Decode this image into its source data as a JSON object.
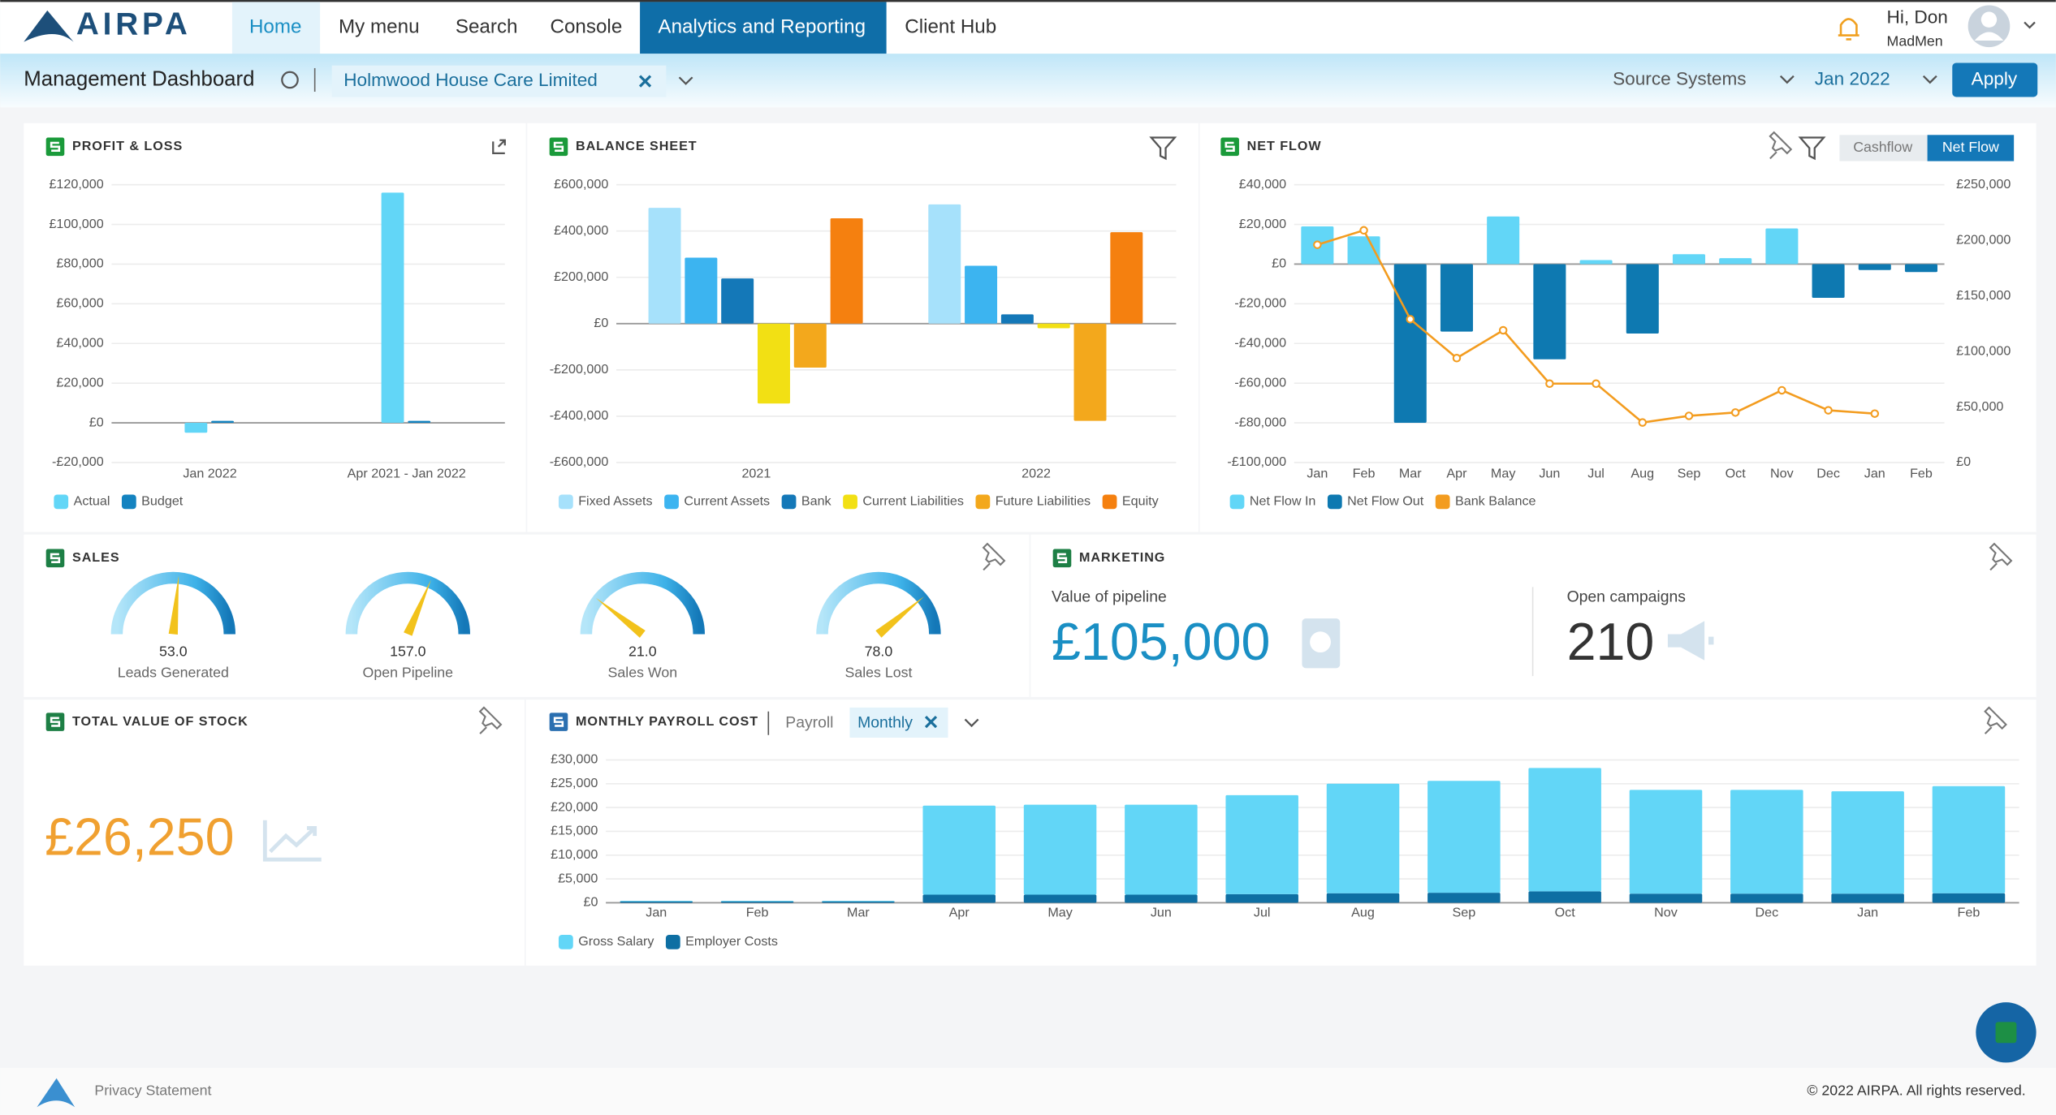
{
  "nav": {
    "logo": "AIRPA",
    "items": [
      "Home",
      "My menu",
      "Search",
      "Console",
      "Analytics and Reporting",
      "Client Hub"
    ],
    "greeting": "Hi, Don",
    "company": "MadMen"
  },
  "toolbar": {
    "title": "Management Dashboard",
    "client": "Holmwood House Care Limited",
    "source": "Source Systems",
    "period": "Jan 2022",
    "apply": "Apply"
  },
  "chart_data": [
    {
      "type": "bar",
      "title": "PROFIT & LOSS",
      "bar_mode": "group",
      "grid": true,
      "categories": [
        "Jan 2022",
        "Apr 2021 - Jan 2022"
      ],
      "series": [
        {
          "name": "Actual",
          "color": "#62d6f7",
          "values": [
            -5000,
            116000
          ]
        },
        {
          "name": "Budget",
          "color": "#1483c0",
          "values": [
            1000,
            1000
          ]
        }
      ],
      "ylim": [
        -20000,
        120000
      ],
      "yticks": [
        {
          "value": 120000,
          "label": "£120,000"
        },
        {
          "value": 100000,
          "label": "£100,000"
        },
        {
          "value": 80000,
          "label": "£80,000"
        },
        {
          "value": 60000,
          "label": "£60,000"
        },
        {
          "value": 40000,
          "label": "£40,000"
        },
        {
          "value": 20000,
          "label": "£20,000"
        },
        {
          "value": 0,
          "label": "£0"
        },
        {
          "value": -20000,
          "label": "-£20,000"
        }
      ]
    },
    {
      "type": "bar",
      "title": "BALANCE SHEET",
      "bar_mode": "group",
      "grid": true,
      "categories": [
        "2021",
        "2022"
      ],
      "series": [
        {
          "name": "Fixed Assets",
          "color": "#a6e1fb",
          "values": [
            500000,
            515000
          ]
        },
        {
          "name": "Current Assets",
          "color": "#3cb4f0",
          "values": [
            285000,
            250000
          ]
        },
        {
          "name": "Bank",
          "color": "#1478b8",
          "values": [
            195000,
            40000
          ]
        },
        {
          "name": "Current Liabilities",
          "color": "#f2e014",
          "values": [
            -345000,
            -20000
          ]
        },
        {
          "name": "Future Liabilities",
          "color": "#f3a81c",
          "values": [
            -190000,
            -420000
          ]
        },
        {
          "name": "Equity",
          "color": "#f5800f",
          "values": [
            455000,
            395000
          ]
        }
      ],
      "ylim": [
        -600000,
        600000
      ],
      "yticks": [
        {
          "value": 600000,
          "label": "£600,000"
        },
        {
          "value": 400000,
          "label": "£400,000"
        },
        {
          "value": 200000,
          "label": "£200,000"
        },
        {
          "value": 0,
          "label": "£0"
        },
        {
          "value": -200000,
          "label": "-£200,000"
        },
        {
          "value": -400000,
          "label": "-£400,000"
        },
        {
          "value": -600000,
          "label": "-£600,000"
        }
      ]
    },
    {
      "type": "bar",
      "title": "NET FLOW",
      "bar_mode": "overlay",
      "grid": true,
      "toggle": [
        "Cashflow",
        "Net Flow"
      ],
      "categories": [
        "Jan",
        "Feb",
        "Mar",
        "Apr",
        "May",
        "Jun",
        "Jul",
        "Aug",
        "Sep",
        "Oct",
        "Nov",
        "Dec",
        "Jan",
        "Feb"
      ],
      "series": [
        {
          "name": "Net Flow In",
          "color": "#62d6f7",
          "values": [
            19000,
            14000,
            0,
            0,
            24000,
            0,
            2000,
            0,
            5000,
            3000,
            18000,
            0,
            0,
            0
          ]
        },
        {
          "name": "Net Flow Out",
          "color": "#0e79b1",
          "values": [
            0,
            0,
            -80000,
            -34000,
            0,
            -48000,
            0,
            -35000,
            0,
            0,
            0,
            -17000,
            -3000,
            -4000
          ]
        },
        {
          "name": "Bank Balance",
          "color": "#f39c1f",
          "type": "line",
          "axis": "y2",
          "values": [
            196000,
            209000,
            129000,
            94000,
            119000,
            71000,
            71000,
            36000,
            42000,
            45000,
            65000,
            47000,
            44000,
            null
          ]
        }
      ],
      "ylim": [
        -100000,
        40000
      ],
      "yticks": [
        {
          "value": 40000,
          "label": "£40,000"
        },
        {
          "value": 20000,
          "label": "£20,000"
        },
        {
          "value": 0,
          "label": "£0"
        },
        {
          "value": -20000,
          "label": "-£20,000"
        },
        {
          "value": -40000,
          "label": "-£40,000"
        },
        {
          "value": -60000,
          "label": "-£60,000"
        },
        {
          "value": -80000,
          "label": "-£80,000"
        },
        {
          "value": -100000,
          "label": "-£100,000"
        }
      ],
      "y2lim": [
        0,
        250000
      ],
      "y2ticks": [
        {
          "value": 250000,
          "label": "£250,000"
        },
        {
          "value": 200000,
          "label": "£200,000"
        },
        {
          "value": 150000,
          "label": "£150,000"
        },
        {
          "value": 100000,
          "label": "£100,000"
        },
        {
          "value": 50000,
          "label": "£50,000"
        },
        {
          "value": 0,
          "label": "£0"
        }
      ]
    },
    {
      "type": "bar",
      "title": "MONTHLY PAYROLL COST",
      "bar_mode": "stack",
      "grid": true,
      "filter": "Payroll",
      "chip": "Monthly",
      "categories": [
        "Jan",
        "Feb",
        "Mar",
        "Apr",
        "May",
        "Jun",
        "Jul",
        "Aug",
        "Sep",
        "Oct",
        "Nov",
        "Dec",
        "Jan",
        "Feb"
      ],
      "series": [
        {
          "name": "Gross Salary",
          "color": "#62d6f7",
          "values": [
            100,
            100,
            100,
            18700,
            18900,
            18900,
            20800,
            23000,
            23500,
            25900,
            21800,
            21800,
            21500,
            22500
          ]
        },
        {
          "name": "Employer Costs",
          "color": "#0e6fa3",
          "values": [
            300,
            300,
            300,
            1700,
            1700,
            1700,
            1800,
            2000,
            2100,
            2400,
            1900,
            1900,
            1900,
            2000
          ]
        }
      ],
      "ylim": [
        0,
        30000
      ],
      "yticks": [
        {
          "value": 30000,
          "label": "£30,000"
        },
        {
          "value": 25000,
          "label": "£25,000"
        },
        {
          "value": 20000,
          "label": "£20,000"
        },
        {
          "value": 15000,
          "label": "£15,000"
        },
        {
          "value": 10000,
          "label": "£10,000"
        },
        {
          "value": 5000,
          "label": "£5,000"
        },
        {
          "value": 0,
          "label": "£0"
        }
      ]
    },
    {
      "type": "gauge",
      "title": "SALES",
      "categories": [
        "Leads Generated",
        "Open Pipeline",
        "Sales Won",
        "Sales Lost"
      ],
      "values": [
        53,
        157,
        21,
        78
      ],
      "value_labels": [
        "53.0",
        "157.0",
        "21.0",
        "78.0"
      ],
      "lims": [
        [
          0,
          100
        ],
        [
          0,
          250
        ],
        [
          0,
          100
        ],
        [
          0,
          100
        ]
      ]
    }
  ],
  "marketing": {
    "title": "MARKETING",
    "pipeline_label": "Value of pipeline",
    "pipeline": "£105,000",
    "campaigns_label": "Open campaigns",
    "campaigns": "210"
  },
  "stock": {
    "title": "TOTAL VALUE OF STOCK",
    "value": "£26,250"
  },
  "footer": {
    "privacy": "Privacy Statement",
    "copyright": "© 2022 AIRPA. All rights reserved."
  }
}
